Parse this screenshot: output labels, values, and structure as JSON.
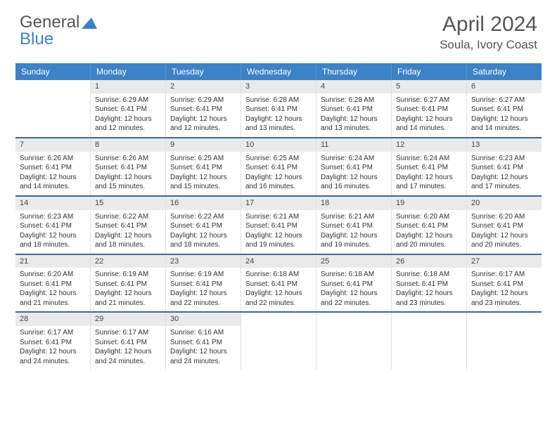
{
  "logo": {
    "part1": "General",
    "part2": "Blue"
  },
  "title": "April 2024",
  "location": "Soula, Ivory Coast",
  "colors": {
    "header_bg": "#3b82c7",
    "week_divider": "#3b6a9a",
    "daynum_bg": "#eaeaea",
    "text": "#333333"
  },
  "weekdays": [
    "Sunday",
    "Monday",
    "Tuesday",
    "Wednesday",
    "Thursday",
    "Friday",
    "Saturday"
  ],
  "weeks": [
    [
      {
        "n": "",
        "sunrise": "",
        "sunset": "",
        "dl": ""
      },
      {
        "n": "1",
        "sunrise": "6:29 AM",
        "sunset": "6:41 PM",
        "dl": "12 hours and 12 minutes."
      },
      {
        "n": "2",
        "sunrise": "6:29 AM",
        "sunset": "6:41 PM",
        "dl": "12 hours and 12 minutes."
      },
      {
        "n": "3",
        "sunrise": "6:28 AM",
        "sunset": "6:41 PM",
        "dl": "12 hours and 13 minutes."
      },
      {
        "n": "4",
        "sunrise": "6:28 AM",
        "sunset": "6:41 PM",
        "dl": "12 hours and 13 minutes."
      },
      {
        "n": "5",
        "sunrise": "6:27 AM",
        "sunset": "6:41 PM",
        "dl": "12 hours and 14 minutes."
      },
      {
        "n": "6",
        "sunrise": "6:27 AM",
        "sunset": "6:41 PM",
        "dl": "12 hours and 14 minutes."
      }
    ],
    [
      {
        "n": "7",
        "sunrise": "6:26 AM",
        "sunset": "6:41 PM",
        "dl": "12 hours and 14 minutes."
      },
      {
        "n": "8",
        "sunrise": "6:26 AM",
        "sunset": "6:41 PM",
        "dl": "12 hours and 15 minutes."
      },
      {
        "n": "9",
        "sunrise": "6:25 AM",
        "sunset": "6:41 PM",
        "dl": "12 hours and 15 minutes."
      },
      {
        "n": "10",
        "sunrise": "6:25 AM",
        "sunset": "6:41 PM",
        "dl": "12 hours and 16 minutes."
      },
      {
        "n": "11",
        "sunrise": "6:24 AM",
        "sunset": "6:41 PM",
        "dl": "12 hours and 16 minutes."
      },
      {
        "n": "12",
        "sunrise": "6:24 AM",
        "sunset": "6:41 PM",
        "dl": "12 hours and 17 minutes."
      },
      {
        "n": "13",
        "sunrise": "6:23 AM",
        "sunset": "6:41 PM",
        "dl": "12 hours and 17 minutes."
      }
    ],
    [
      {
        "n": "14",
        "sunrise": "6:23 AM",
        "sunset": "6:41 PM",
        "dl": "12 hours and 18 minutes."
      },
      {
        "n": "15",
        "sunrise": "6:22 AM",
        "sunset": "6:41 PM",
        "dl": "12 hours and 18 minutes."
      },
      {
        "n": "16",
        "sunrise": "6:22 AM",
        "sunset": "6:41 PM",
        "dl": "12 hours and 18 minutes."
      },
      {
        "n": "17",
        "sunrise": "6:21 AM",
        "sunset": "6:41 PM",
        "dl": "12 hours and 19 minutes."
      },
      {
        "n": "18",
        "sunrise": "6:21 AM",
        "sunset": "6:41 PM",
        "dl": "12 hours and 19 minutes."
      },
      {
        "n": "19",
        "sunrise": "6:20 AM",
        "sunset": "6:41 PM",
        "dl": "12 hours and 20 minutes."
      },
      {
        "n": "20",
        "sunrise": "6:20 AM",
        "sunset": "6:41 PM",
        "dl": "12 hours and 20 minutes."
      }
    ],
    [
      {
        "n": "21",
        "sunrise": "6:20 AM",
        "sunset": "6:41 PM",
        "dl": "12 hours and 21 minutes."
      },
      {
        "n": "22",
        "sunrise": "6:19 AM",
        "sunset": "6:41 PM",
        "dl": "12 hours and 21 minutes."
      },
      {
        "n": "23",
        "sunrise": "6:19 AM",
        "sunset": "6:41 PM",
        "dl": "12 hours and 22 minutes."
      },
      {
        "n": "24",
        "sunrise": "6:18 AM",
        "sunset": "6:41 PM",
        "dl": "12 hours and 22 minutes."
      },
      {
        "n": "25",
        "sunrise": "6:18 AM",
        "sunset": "6:41 PM",
        "dl": "12 hours and 22 minutes."
      },
      {
        "n": "26",
        "sunrise": "6:18 AM",
        "sunset": "6:41 PM",
        "dl": "12 hours and 23 minutes."
      },
      {
        "n": "27",
        "sunrise": "6:17 AM",
        "sunset": "6:41 PM",
        "dl": "12 hours and 23 minutes."
      }
    ],
    [
      {
        "n": "28",
        "sunrise": "6:17 AM",
        "sunset": "6:41 PM",
        "dl": "12 hours and 24 minutes."
      },
      {
        "n": "29",
        "sunrise": "6:17 AM",
        "sunset": "6:41 PM",
        "dl": "12 hours and 24 minutes."
      },
      {
        "n": "30",
        "sunrise": "6:16 AM",
        "sunset": "6:41 PM",
        "dl": "12 hours and 24 minutes."
      },
      {
        "n": "",
        "sunrise": "",
        "sunset": "",
        "dl": ""
      },
      {
        "n": "",
        "sunrise": "",
        "sunset": "",
        "dl": ""
      },
      {
        "n": "",
        "sunrise": "",
        "sunset": "",
        "dl": ""
      },
      {
        "n": "",
        "sunrise": "",
        "sunset": "",
        "dl": ""
      }
    ]
  ],
  "labels": {
    "sunrise": "Sunrise:",
    "sunset": "Sunset:",
    "daylight": "Daylight:"
  }
}
